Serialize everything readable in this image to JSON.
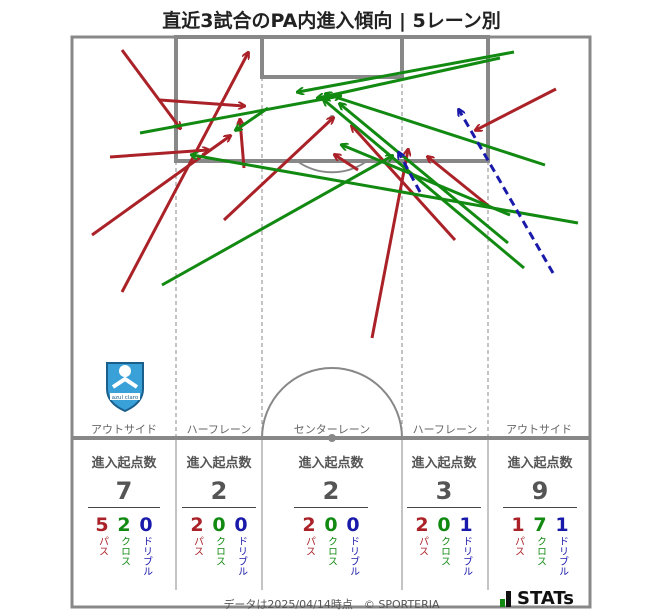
{
  "title": "直近3試合のPA内進入傾向 | 5レーン別",
  "footer": "データは2025/04/14時点　© SPORTERIA",
  "stats_logo_text": "STATs",
  "club_logo_text": "azul claro",
  "lanes": [
    {
      "label": "アウトサイド",
      "header": "進入起点数",
      "total": "7",
      "pass": "5",
      "cross": "2",
      "dribble": "0"
    },
    {
      "label": "ハーフレーン",
      "header": "進入起点数",
      "total": "2",
      "pass": "2",
      "cross": "0",
      "dribble": "0"
    },
    {
      "label": "センターレーン",
      "header": "進入起点数",
      "total": "2",
      "pass": "2",
      "cross": "0",
      "dribble": "0"
    },
    {
      "label": "ハーフレーン",
      "header": "進入起点数",
      "total": "3",
      "pass": "2",
      "cross": "0",
      "dribble": "1"
    },
    {
      "label": "アウトサイド",
      "header": "進入起点数",
      "total": "9",
      "pass": "1",
      "cross": "7",
      "dribble": "1"
    }
  ],
  "breakdown_labels": {
    "pass": "パス",
    "cross": "クロス",
    "dribble": "ドリブル"
  },
  "colors": {
    "pass": "#aa2228",
    "cross": "#128a12",
    "dribble": "#1a1aaa",
    "lines": "#888888"
  }
}
